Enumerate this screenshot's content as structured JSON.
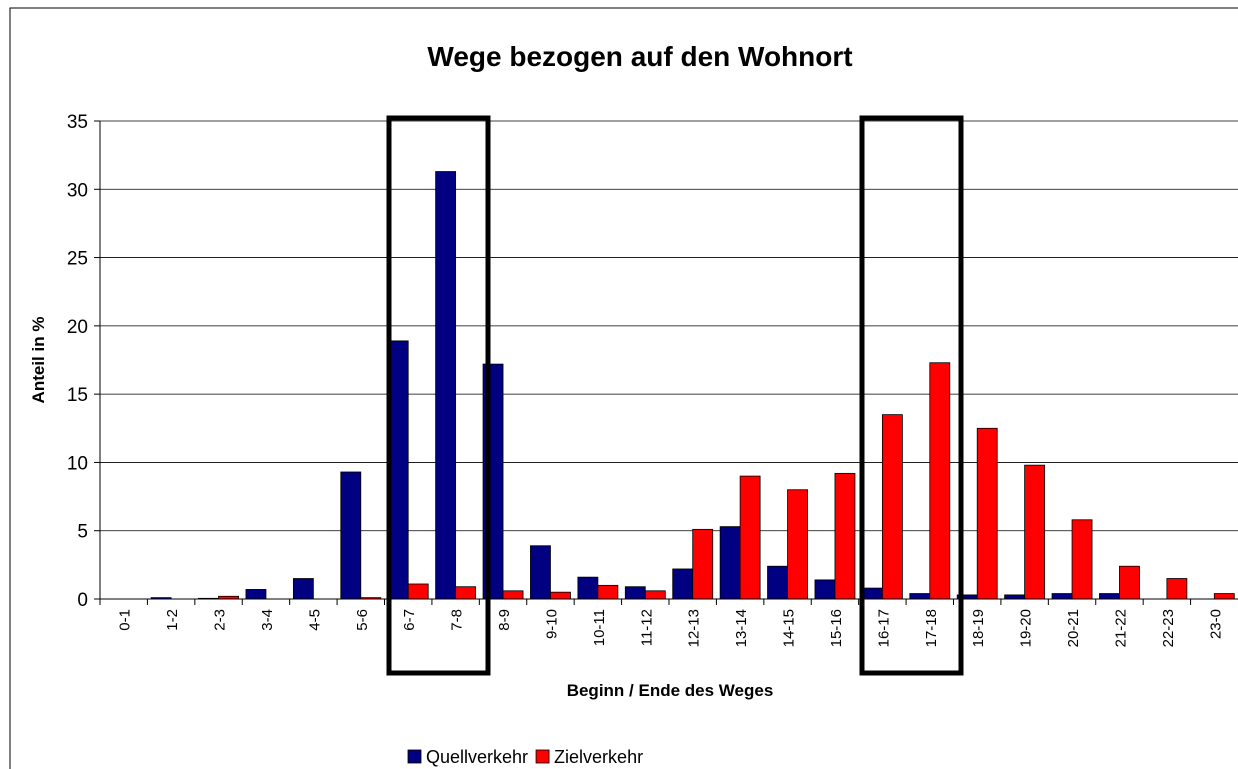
{
  "chart_data": {
    "type": "bar",
    "title": "Wege bezogen auf den Wohnort",
    "x_label": "Beginn / Ende des Weges",
    "y_label": "Anteil in %",
    "categories": [
      "0-1",
      "1-2",
      "2-3",
      "3-4",
      "4-5",
      "5-6",
      "6-7",
      "7-8",
      "8-9",
      "9-10",
      "10-11",
      "11-12",
      "12-13",
      "13-14",
      "14-15",
      "15-16",
      "16-17",
      "17-18",
      "18-19",
      "19-20",
      "20-21",
      "21-22",
      "22-23",
      "23-0"
    ],
    "series": [
      {
        "name": "Quellverkehr",
        "color": "#000080",
        "values": [
          0,
          0.1,
          0.05,
          0.7,
          1.5,
          9.3,
          18.9,
          31.3,
          17.2,
          3.9,
          1.6,
          0.9,
          2.2,
          5.3,
          2.4,
          1.4,
          0.8,
          0.4,
          0.3,
          0.3,
          0.4,
          0.4,
          0,
          0
        ]
      },
      {
        "name": "Zielverkehr",
        "color": "#ff0000",
        "values": [
          0,
          0,
          0.2,
          0,
          0,
          0.1,
          1.1,
          0.9,
          0.6,
          0.5,
          1.0,
          0.6,
          5.1,
          9.0,
          8.0,
          9.2,
          13.5,
          17.3,
          12.5,
          9.8,
          5.8,
          2.4,
          1.5,
          0.4
        ]
      }
    ],
    "ylim": [
      0,
      35
    ],
    "yticks": [
      0,
      5,
      10,
      15,
      20,
      25,
      30,
      35
    ],
    "grid": true,
    "legend": "bottom"
  }
}
